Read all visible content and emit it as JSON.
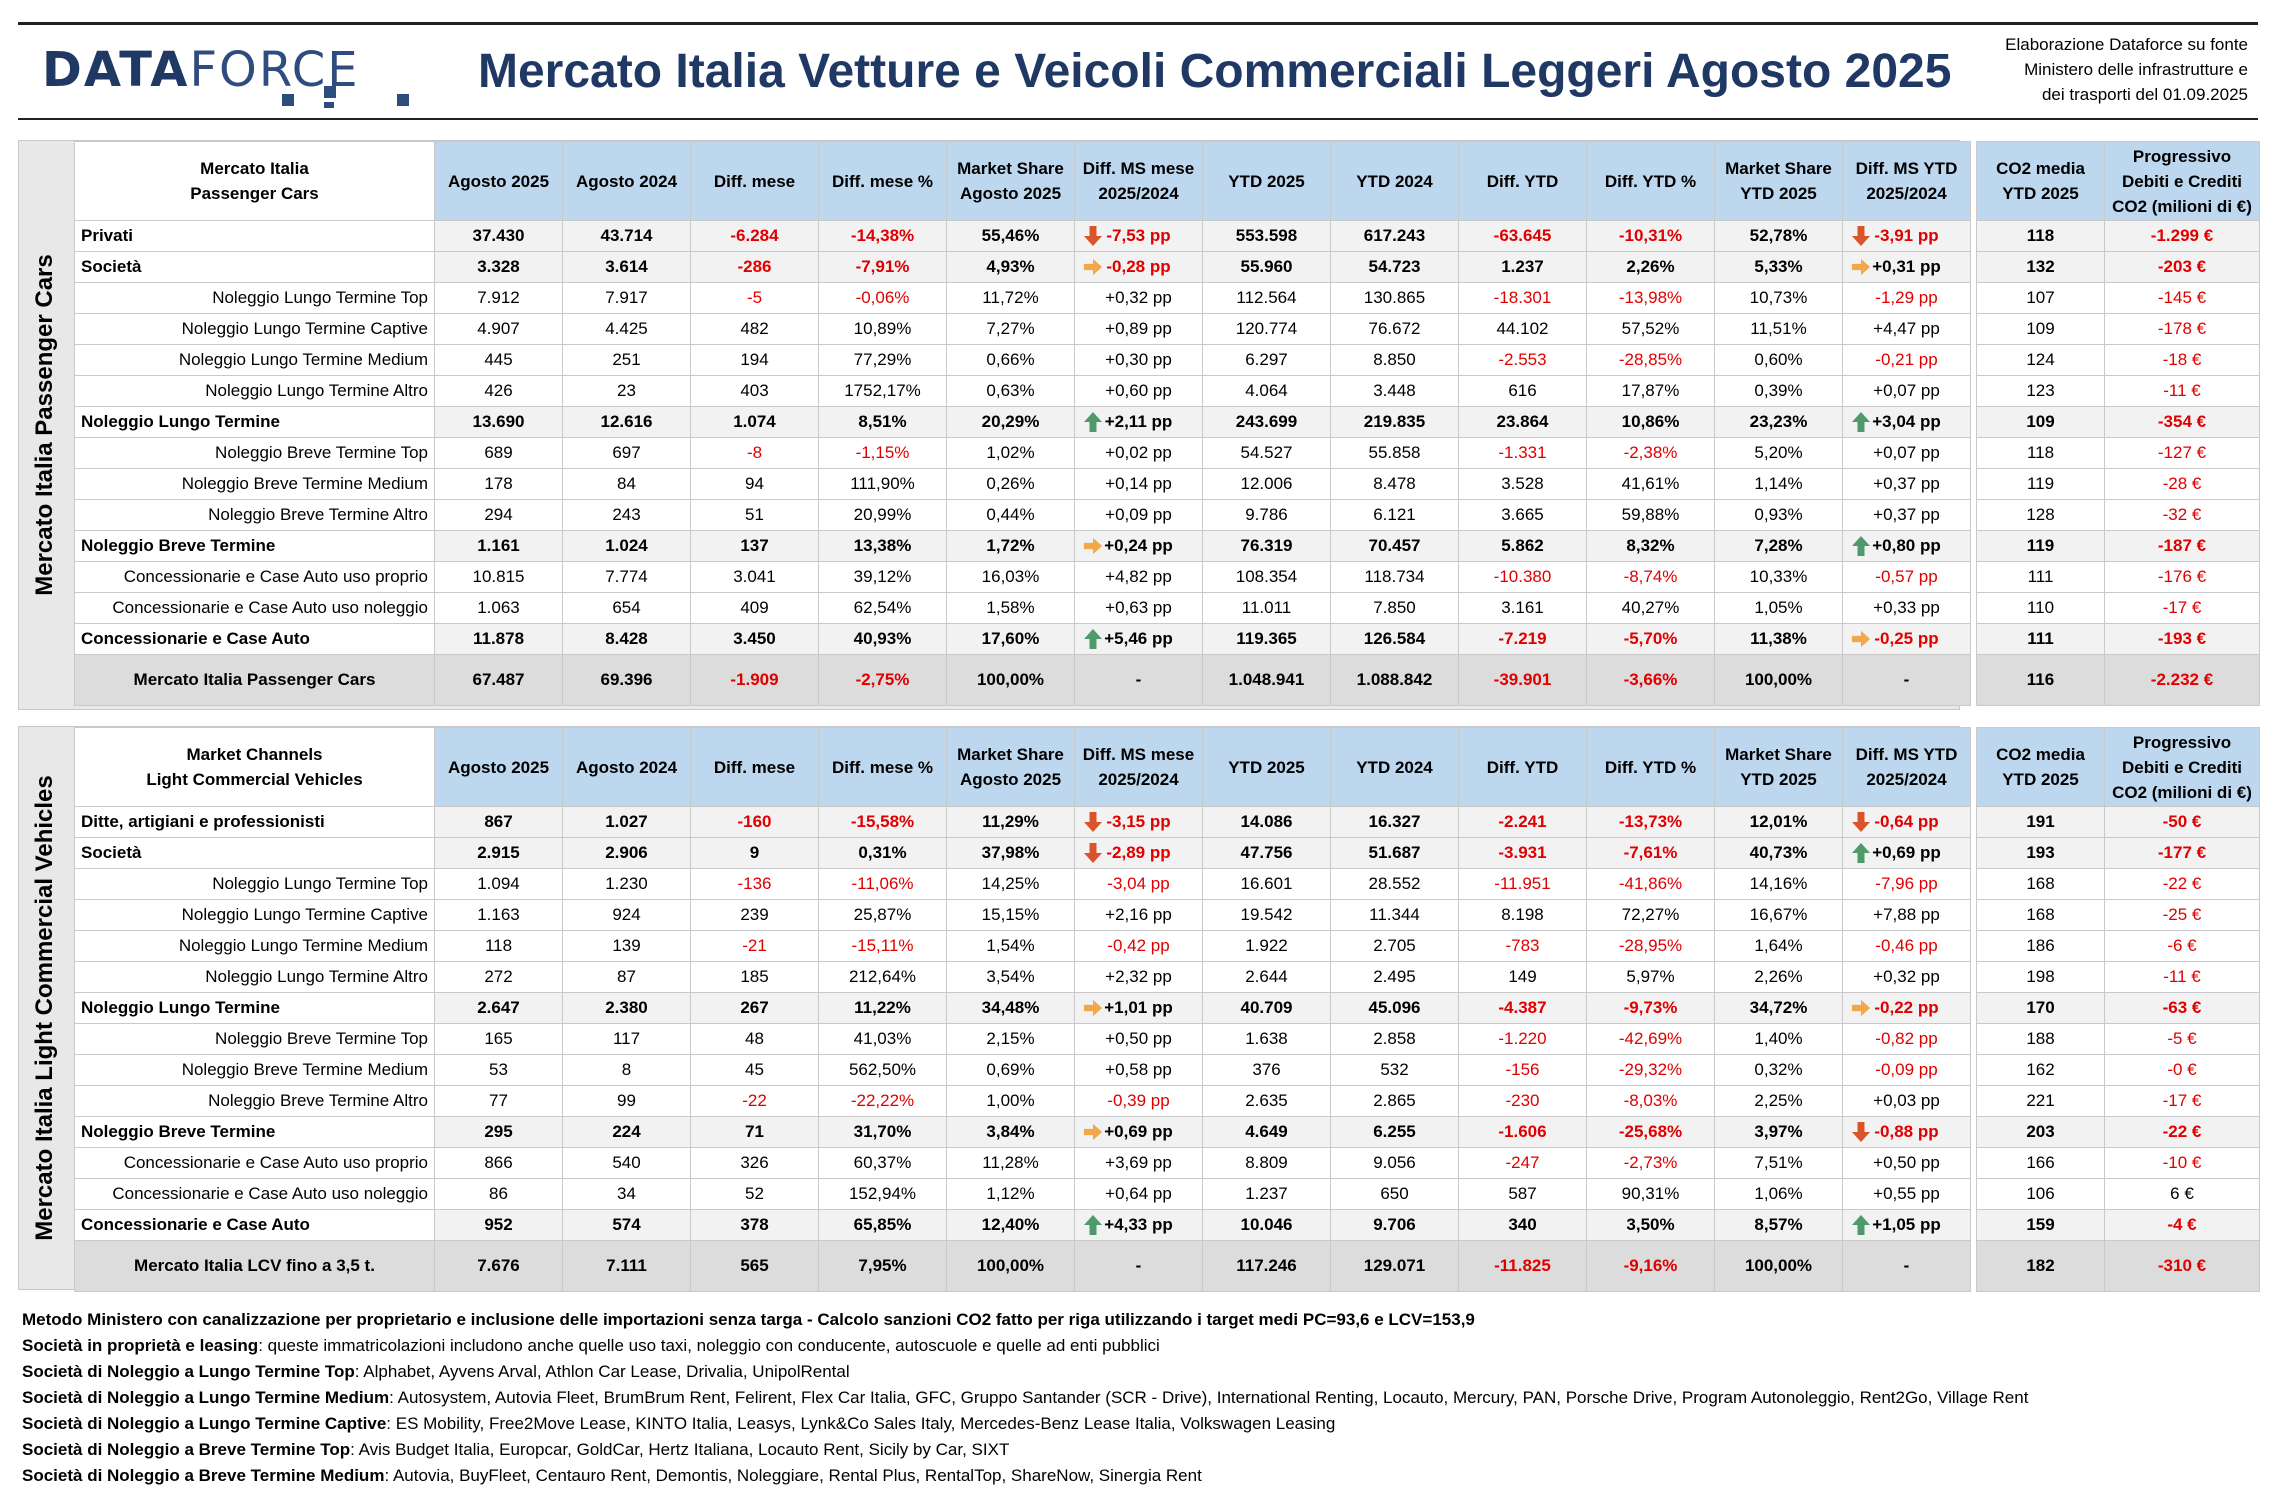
{
  "header": {
    "logo_bold": "DATA",
    "logo_light": "FORCE",
    "title": "Mercato Italia Vetture e Veicoli Commerciali Leggeri Agosto 2025",
    "source_lines": [
      "Elaborazione Dataforce su fonte",
      "Ministero delle infrastrutture e",
      "dei trasporti del 01.09.2025"
    ]
  },
  "colors": {
    "header_blue": "#bdd7ee",
    "title_blue": "#1f3864",
    "negative": "#e00000",
    "arrow_up": "#4e9a6a",
    "arrow_down": "#d9542a",
    "arrow_side": "#f0a848"
  },
  "columns": [
    "Agosto 2025",
    "Agosto 2024",
    "Diff. mese",
    "Diff. mese %",
    "Market Share Agosto 2025",
    "Diff. MS mese 2025/2024",
    "YTD 2025",
    "YTD 2024",
    "Diff. YTD",
    "Diff. YTD %",
    "Market Share YTD 2025",
    "Diff. MS YTD 2025/2024"
  ],
  "co2_columns": [
    "CO2 media YTD 2025",
    "Progressivo Debiti e Crediti CO2 (milioni di €)"
  ],
  "pc": {
    "side_label": "Mercato Italia Passenger Cars",
    "corner": [
      "Mercato Italia",
      "Passenger Cars"
    ],
    "rows": [
      {
        "type": "bold",
        "label": "Privati",
        "v": [
          "37.430",
          "43.714",
          "-6.284",
          "-14,38%",
          "55,46%",
          "-7,53 pp",
          "553.598",
          "617.243",
          "-63.645",
          "-10,31%",
          "52,78%",
          "-3,91 pp"
        ],
        "a1": "down",
        "a2": "down",
        "co2": [
          "118",
          "-1.299 €"
        ]
      },
      {
        "type": "bold",
        "label": "Società",
        "v": [
          "3.328",
          "3.614",
          "-286",
          "-7,91%",
          "4,93%",
          "-0,28 pp",
          "55.960",
          "54.723",
          "1.237",
          "2,26%",
          "5,33%",
          "+0,31 pp"
        ],
        "a1": "side",
        "a2": "side",
        "co2": [
          "132",
          "-203 €"
        ]
      },
      {
        "type": "sub",
        "label": "Noleggio Lungo Termine Top",
        "v": [
          "7.912",
          "7.917",
          "-5",
          "-0,06%",
          "11,72%",
          "+0,32 pp",
          "112.564",
          "130.865",
          "-18.301",
          "-13,98%",
          "10,73%",
          "-1,29 pp"
        ],
        "co2": [
          "107",
          "-145 €"
        ]
      },
      {
        "type": "sub",
        "label": "Noleggio Lungo Termine Captive",
        "v": [
          "4.907",
          "4.425",
          "482",
          "10,89%",
          "7,27%",
          "+0,89 pp",
          "120.774",
          "76.672",
          "44.102",
          "57,52%",
          "11,51%",
          "+4,47 pp"
        ],
        "co2": [
          "109",
          "-178 €"
        ]
      },
      {
        "type": "sub",
        "label": "Noleggio Lungo Termine Medium",
        "v": [
          "445",
          "251",
          "194",
          "77,29%",
          "0,66%",
          "+0,30 pp",
          "6.297",
          "8.850",
          "-2.553",
          "-28,85%",
          "0,60%",
          "-0,21 pp"
        ],
        "co2": [
          "124",
          "-18 €"
        ]
      },
      {
        "type": "sub",
        "label": "Noleggio Lungo Termine Altro",
        "v": [
          "426",
          "23",
          "403",
          "1752,17%",
          "0,63%",
          "+0,60 pp",
          "4.064",
          "3.448",
          "616",
          "17,87%",
          "0,39%",
          "+0,07 pp"
        ],
        "co2": [
          "123",
          "-11 €"
        ]
      },
      {
        "type": "bold",
        "label": "Noleggio Lungo Termine",
        "v": [
          "13.690",
          "12.616",
          "1.074",
          "8,51%",
          "20,29%",
          "+2,11 pp",
          "243.699",
          "219.835",
          "23.864",
          "10,86%",
          "23,23%",
          "+3,04 pp"
        ],
        "a1": "up",
        "a2": "up",
        "co2": [
          "109",
          "-354 €"
        ]
      },
      {
        "type": "sub",
        "label": "Noleggio Breve Termine Top",
        "v": [
          "689",
          "697",
          "-8",
          "-1,15%",
          "1,02%",
          "+0,02 pp",
          "54.527",
          "55.858",
          "-1.331",
          "-2,38%",
          "5,20%",
          "+0,07 pp"
        ],
        "co2": [
          "118",
          "-127 €"
        ]
      },
      {
        "type": "sub",
        "label": "Noleggio Breve Termine Medium",
        "v": [
          "178",
          "84",
          "94",
          "111,90%",
          "0,26%",
          "+0,14 pp",
          "12.006",
          "8.478",
          "3.528",
          "41,61%",
          "1,14%",
          "+0,37 pp"
        ],
        "co2": [
          "119",
          "-28 €"
        ]
      },
      {
        "type": "sub",
        "label": "Noleggio Breve Termine Altro",
        "v": [
          "294",
          "243",
          "51",
          "20,99%",
          "0,44%",
          "+0,09 pp",
          "9.786",
          "6.121",
          "3.665",
          "59,88%",
          "0,93%",
          "+0,37 pp"
        ],
        "co2": [
          "128",
          "-32 €"
        ]
      },
      {
        "type": "bold",
        "label": "Noleggio Breve Termine",
        "v": [
          "1.161",
          "1.024",
          "137",
          "13,38%",
          "1,72%",
          "+0,24 pp",
          "76.319",
          "70.457",
          "5.862",
          "8,32%",
          "7,28%",
          "+0,80 pp"
        ],
        "a1": "side",
        "a2": "up",
        "co2": [
          "119",
          "-187 €"
        ]
      },
      {
        "type": "sub",
        "label": "Concessionarie e Case Auto uso proprio",
        "v": [
          "10.815",
          "7.774",
          "3.041",
          "39,12%",
          "16,03%",
          "+4,82 pp",
          "108.354",
          "118.734",
          "-10.380",
          "-8,74%",
          "10,33%",
          "-0,57 pp"
        ],
        "co2": [
          "111",
          "-176 €"
        ]
      },
      {
        "type": "sub",
        "label": "Concessionarie e Case Auto uso noleggio",
        "v": [
          "1.063",
          "654",
          "409",
          "62,54%",
          "1,58%",
          "+0,63 pp",
          "11.011",
          "7.850",
          "3.161",
          "40,27%",
          "1,05%",
          "+0,33 pp"
        ],
        "co2": [
          "110",
          "-17 €"
        ]
      },
      {
        "type": "bold",
        "label": "Concessionarie e Case Auto",
        "v": [
          "11.878",
          "8.428",
          "3.450",
          "40,93%",
          "17,60%",
          "+5,46 pp",
          "119.365",
          "126.584",
          "-7.219",
          "-5,70%",
          "11,38%",
          "-0,25 pp"
        ],
        "a1": "up",
        "a2": "side",
        "co2": [
          "111",
          "-193 €"
        ]
      },
      {
        "type": "total",
        "label": "Mercato Italia Passenger Cars",
        "v": [
          "67.487",
          "69.396",
          "-1.909",
          "-2,75%",
          "100,00%",
          "-",
          "1.048.941",
          "1.088.842",
          "-39.901",
          "-3,66%",
          "100,00%",
          "-"
        ],
        "co2": [
          "116",
          "-2.232 €"
        ]
      }
    ]
  },
  "lcv": {
    "side_label": "Mercato Italia Light Commercial Vehicles",
    "corner": [
      "Market Channels",
      "Light Commercial Vehicles"
    ],
    "rows": [
      {
        "type": "bold",
        "label": "Ditte, artigiani e professionisti",
        "v": [
          "867",
          "1.027",
          "-160",
          "-15,58%",
          "11,29%",
          "-3,15 pp",
          "14.086",
          "16.327",
          "-2.241",
          "-13,73%",
          "12,01%",
          "-0,64 pp"
        ],
        "a1": "down",
        "a2": "down",
        "co2": [
          "191",
          "-50 €"
        ]
      },
      {
        "type": "bold",
        "label": "Società",
        "v": [
          "2.915",
          "2.906",
          "9",
          "0,31%",
          "37,98%",
          "-2,89 pp",
          "47.756",
          "51.687",
          "-3.931",
          "-7,61%",
          "40,73%",
          "+0,69 pp"
        ],
        "a1": "down",
        "a2": "up",
        "co2": [
          "193",
          "-177 €"
        ]
      },
      {
        "type": "sub",
        "label": "Noleggio Lungo Termine Top",
        "v": [
          "1.094",
          "1.230",
          "-136",
          "-11,06%",
          "14,25%",
          "-3,04 pp",
          "16.601",
          "28.552",
          "-11.951",
          "-41,86%",
          "14,16%",
          "-7,96 pp"
        ],
        "co2": [
          "168",
          "-22 €"
        ]
      },
      {
        "type": "sub",
        "label": "Noleggio Lungo Termine Captive",
        "v": [
          "1.163",
          "924",
          "239",
          "25,87%",
          "15,15%",
          "+2,16 pp",
          "19.542",
          "11.344",
          "8.198",
          "72,27%",
          "16,67%",
          "+7,88 pp"
        ],
        "co2": [
          "168",
          "-25 €"
        ]
      },
      {
        "type": "sub",
        "label": "Noleggio Lungo Termine Medium",
        "v": [
          "118",
          "139",
          "-21",
          "-15,11%",
          "1,54%",
          "-0,42 pp",
          "1.922",
          "2.705",
          "-783",
          "-28,95%",
          "1,64%",
          "-0,46 pp"
        ],
        "co2": [
          "186",
          "-6 €"
        ]
      },
      {
        "type": "sub",
        "label": "Noleggio Lungo Termine Altro",
        "v": [
          "272",
          "87",
          "185",
          "212,64%",
          "3,54%",
          "+2,32 pp",
          "2.644",
          "2.495",
          "149",
          "5,97%",
          "2,26%",
          "+0,32 pp"
        ],
        "co2": [
          "198",
          "-11 €"
        ]
      },
      {
        "type": "bold",
        "label": "Noleggio Lungo Termine",
        "v": [
          "2.647",
          "2.380",
          "267",
          "11,22%",
          "34,48%",
          "+1,01 pp",
          "40.709",
          "45.096",
          "-4.387",
          "-9,73%",
          "34,72%",
          "-0,22 pp"
        ],
        "a1": "side",
        "a2": "side",
        "co2": [
          "170",
          "-63 €"
        ]
      },
      {
        "type": "sub",
        "label": "Noleggio Breve Termine Top",
        "v": [
          "165",
          "117",
          "48",
          "41,03%",
          "2,15%",
          "+0,50 pp",
          "1.638",
          "2.858",
          "-1.220",
          "-42,69%",
          "1,40%",
          "-0,82 pp"
        ],
        "co2": [
          "188",
          "-5 €"
        ]
      },
      {
        "type": "sub",
        "label": "Noleggio Breve Termine Medium",
        "v": [
          "53",
          "8",
          "45",
          "562,50%",
          "0,69%",
          "+0,58 pp",
          "376",
          "532",
          "-156",
          "-29,32%",
          "0,32%",
          "-0,09 pp"
        ],
        "co2": [
          "162",
          "-0 €"
        ]
      },
      {
        "type": "sub",
        "label": "Noleggio Breve Termine Altro",
        "v": [
          "77",
          "99",
          "-22",
          "-22,22%",
          "1,00%",
          "-0,39 pp",
          "2.635",
          "2.865",
          "-230",
          "-8,03%",
          "2,25%",
          "+0,03 pp"
        ],
        "co2": [
          "221",
          "-17 €"
        ]
      },
      {
        "type": "bold",
        "label": "Noleggio Breve Termine",
        "v": [
          "295",
          "224",
          "71",
          "31,70%",
          "3,84%",
          "+0,69 pp",
          "4.649",
          "6.255",
          "-1.606",
          "-25,68%",
          "3,97%",
          "-0,88 pp"
        ],
        "a1": "side",
        "a2": "down",
        "co2": [
          "203",
          "-22 €"
        ]
      },
      {
        "type": "sub",
        "label": "Concessionarie e Case Auto uso proprio",
        "v": [
          "866",
          "540",
          "326",
          "60,37%",
          "11,28%",
          "+3,69 pp",
          "8.809",
          "9.056",
          "-247",
          "-2,73%",
          "7,51%",
          "+0,50 pp"
        ],
        "co2": [
          "166",
          "-10 €"
        ]
      },
      {
        "type": "sub",
        "label": "Concessionarie e Case Auto uso noleggio",
        "v": [
          "86",
          "34",
          "52",
          "152,94%",
          "1,12%",
          "+0,64 pp",
          "1.237",
          "650",
          "587",
          "90,31%",
          "1,06%",
          "+0,55 pp"
        ],
        "co2": [
          "106",
          "6 €"
        ]
      },
      {
        "type": "bold",
        "label": "Concessionarie e Case Auto",
        "v": [
          "952",
          "574",
          "378",
          "65,85%",
          "12,40%",
          "+4,33 pp",
          "10.046",
          "9.706",
          "340",
          "3,50%",
          "8,57%",
          "+1,05 pp"
        ],
        "a1": "up",
        "a2": "up",
        "co2": [
          "159",
          "-4 €"
        ]
      },
      {
        "type": "total",
        "label": "Mercato Italia LCV fino a 3,5 t.",
        "v": [
          "7.676",
          "7.111",
          "565",
          "7,95%",
          "100,00%",
          "-",
          "117.246",
          "129.071",
          "-11.825",
          "-9,16%",
          "100,00%",
          "-"
        ],
        "co2": [
          "182",
          "-310 €"
        ]
      }
    ]
  },
  "notes": [
    {
      "b": "Metodo Ministero con canalizzazione per proprietario e inclusione delle importazioni senza targa - Calcolo sanzioni CO2 fatto per riga utilizzando i target medi PC=93,6 e LCV=153,9",
      "t": ""
    },
    {
      "b": "Società in proprietà e leasing",
      "t": ": queste immatricolazioni includono anche quelle uso taxi, noleggio con conducente, autoscuole e quelle ad enti pubblici"
    },
    {
      "b": "Società di Noleggio a Lungo Termine Top",
      "t": ": Alphabet, Ayvens Arval, Athlon Car Lease, Drivalia, UnipolRental"
    },
    {
      "b": "Società di Noleggio a Lungo Termine Medium",
      "t": ": Autosystem, Autovia Fleet, BrumBrum Rent, Felirent, Flex Car Italia, GFC, Gruppo Santander (SCR - Drive), International Renting, Locauto, Mercury, PAN, Porsche Drive, Program Autonoleggio, Rent2Go, Village Rent"
    },
    {
      "b": "Società di Noleggio a Lungo Termine Captive",
      "t": ": ES Mobility, Free2Move Lease, KINTO Italia, Leasys, Lynk&Co Sales Italy, Mercedes-Benz Lease Italia, Volkswagen Leasing"
    },
    {
      "b": "Società di Noleggio a Breve Termine Top",
      "t": ": Avis Budget Italia, Europcar, GoldCar, Hertz Italiana, Locauto Rent, Sicily by Car, SIXT"
    },
    {
      "b": "Società di Noleggio a Breve Termine Medium",
      "t": ": Autovia, BuyFleet, Centauro Rent, Demontis, Noleggiare, Rental Plus, RentalTop, ShareNow, Sinergia Rent"
    }
  ]
}
